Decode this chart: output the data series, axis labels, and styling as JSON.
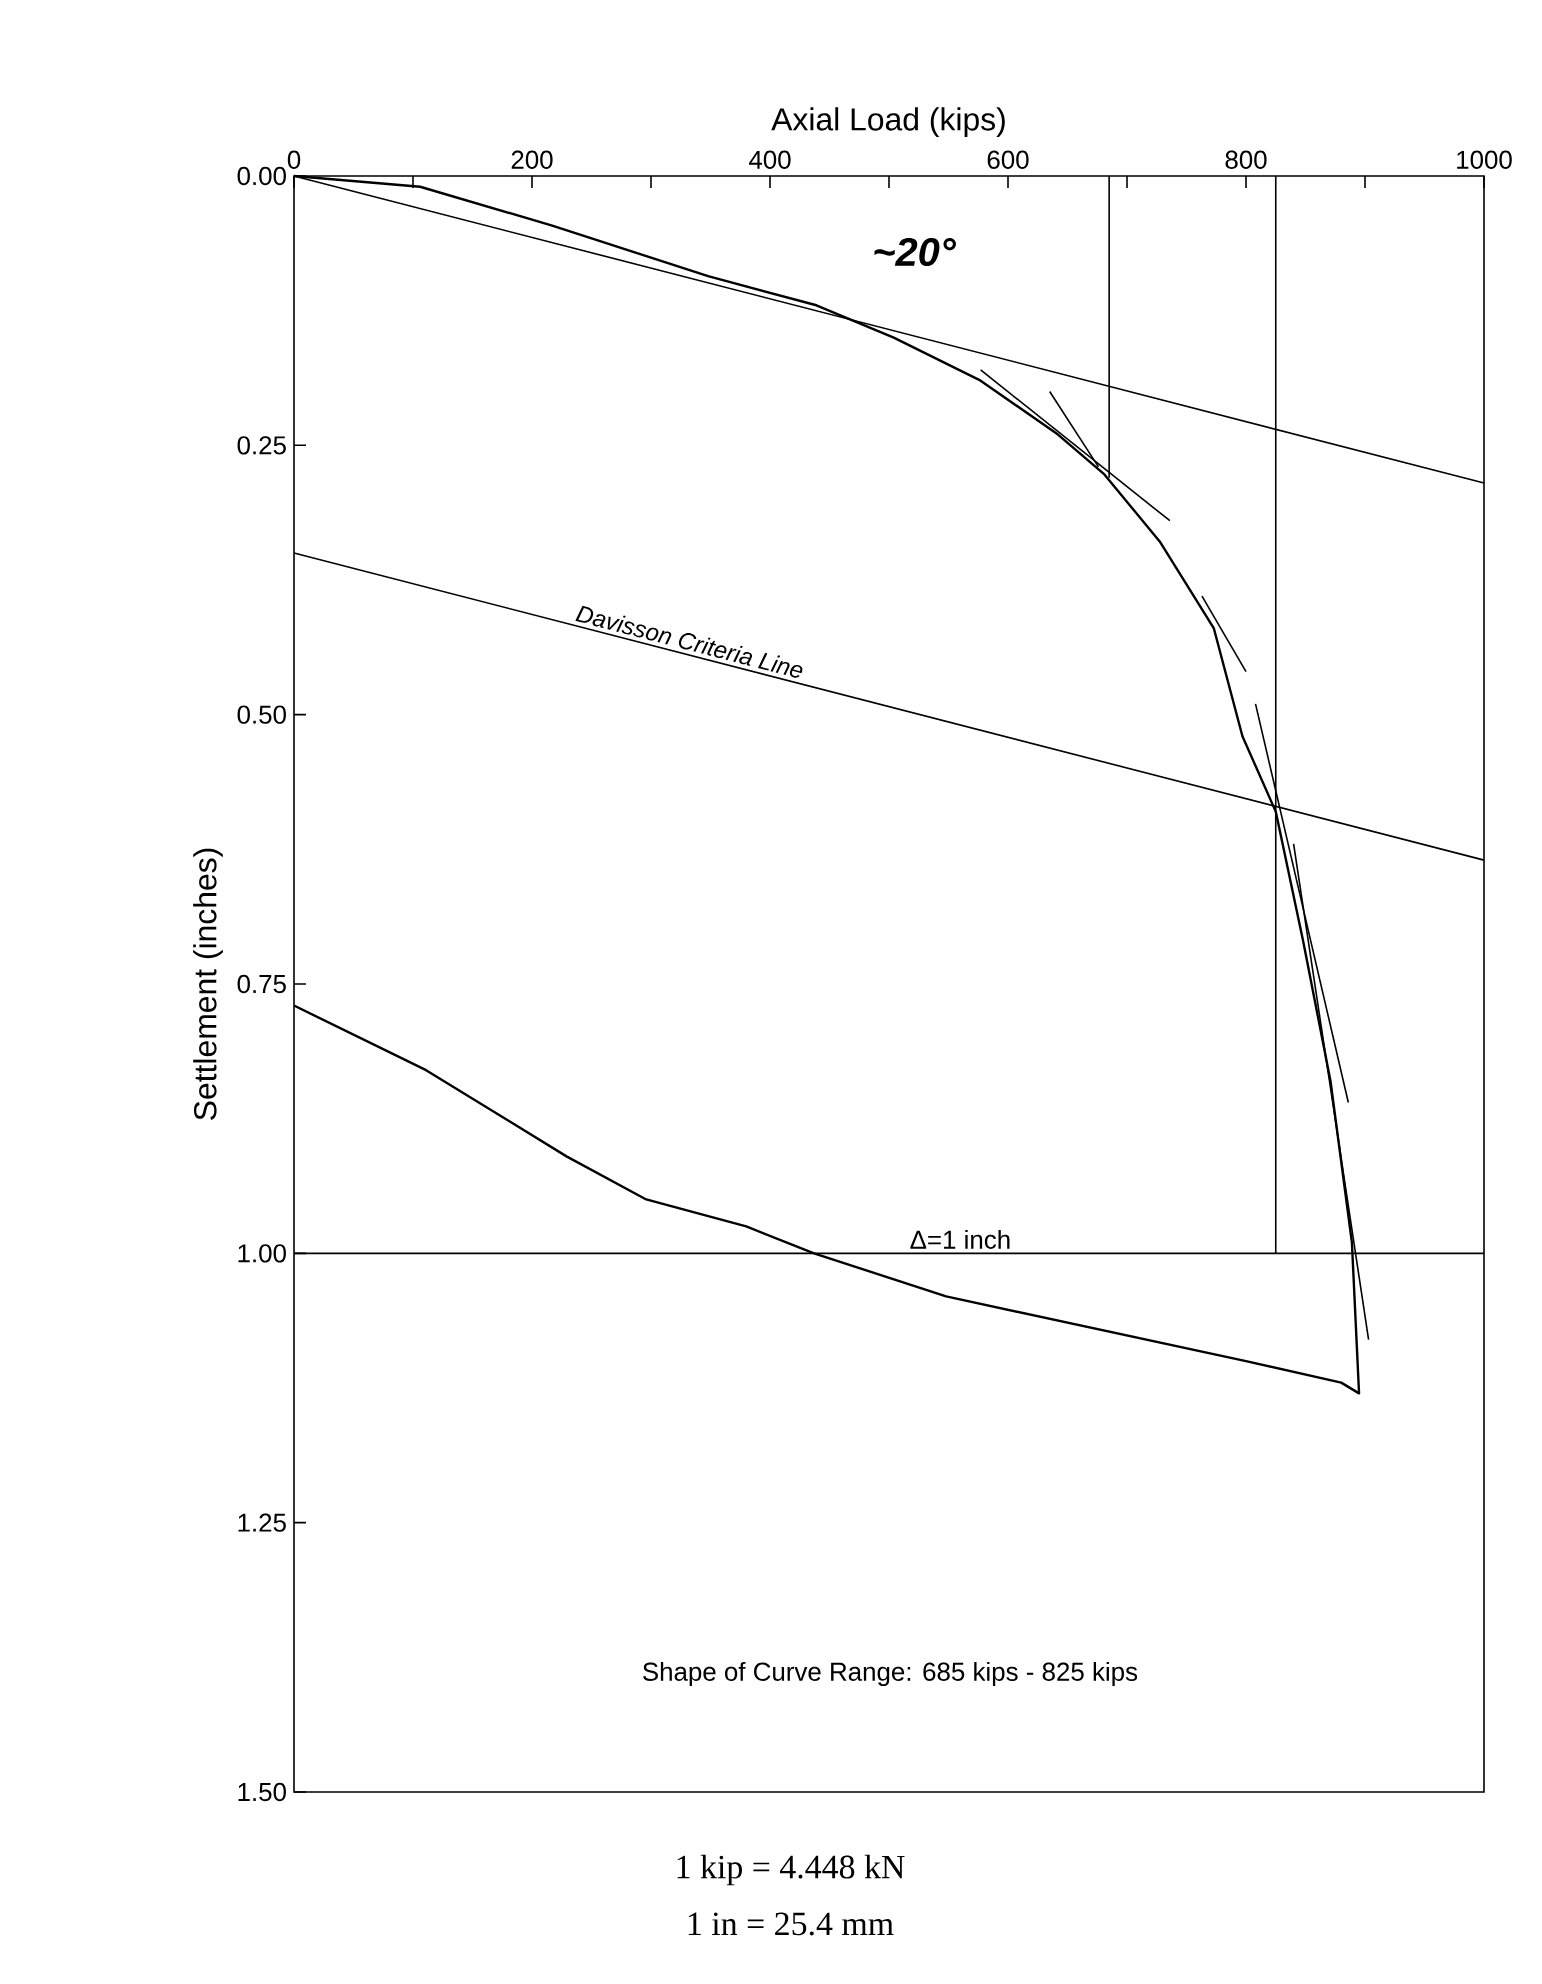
{
  "chart_data": {
    "type": "line",
    "xlabel": "Axial Load (kips)",
    "ylabel": "Settlement (inches)",
    "xlim": [
      0,
      1000
    ],
    "ylim": [
      1.5,
      0
    ],
    "xticks": [
      0,
      {
        "value": 100,
        "label": null
      },
      200,
      {
        "value": 300,
        "label": null
      },
      400,
      {
        "value": 500,
        "label": null
      },
      600,
      {
        "value": 700,
        "label": null
      },
      800,
      {
        "value": 900,
        "label": null
      },
      1000
    ],
    "yticks": [
      {
        "value": 0,
        "label": "0.00"
      },
      {
        "value": 0.25,
        "label": "0.25"
      },
      {
        "value": 0.5,
        "label": "0.50"
      },
      {
        "value": 0.75,
        "label": "0.75"
      },
      {
        "value": 1,
        "label": "1.00"
      },
      {
        "value": 1.25,
        "label": "1.25"
      },
      {
        "value": 1.5,
        "label": "1.50"
      }
    ],
    "grid": false,
    "marker": "none",
    "line_style": "solid",
    "series": [
      {
        "color": "#000000",
        "x": [
          0,
          106,
          217,
          348,
          439,
          504,
          577,
          642,
          681,
          728,
          773,
          797,
          825,
          848,
          871,
          889,
          895,
          880,
          800,
          632,
          548,
          437,
          380,
          296,
          229,
          111,
          0
        ],
        "values": [
          0,
          0.01,
          0.046,
          0.093,
          0.12,
          0.15,
          0.19,
          0.24,
          0.277,
          0.34,
          0.42,
          0.52,
          0.59,
          0.71,
          0.84,
          0.99,
          1.13,
          1.12,
          1.1,
          1.06,
          1.04,
          1.0,
          0.975,
          0.95,
          0.91,
          0.83,
          0.77
        ]
      },
      {
        "color": "#000000",
        "x": [
          0,
          1000
        ],
        "values": [
          0,
          0.285
        ]
      },
      {
        "name": "Davisson Criteria Line",
        "color": "#000000",
        "x": [
          0,
          1000
        ],
        "values": [
          0.35,
          0.635
        ]
      },
      {
        "color": "#000000",
        "x": [
          685,
          685
        ],
        "values": [
          0,
          0.28
        ]
      },
      {
        "color": "#000000",
        "x": [
          825,
          825
        ],
        "values": [
          0,
          1.0
        ]
      },
      {
        "color": "#000000",
        "x": [
          577,
          736
        ],
        "values": [
          0.18,
          0.32
        ]
      },
      {
        "color": "#000000",
        "x": [
          635,
          676
        ],
        "values": [
          0.2,
          0.27
        ]
      },
      {
        "color": "#000000",
        "x": [
          763,
          800
        ],
        "values": [
          0.39,
          0.46
        ]
      },
      {
        "color": "#000000",
        "x": [
          808,
          886
        ],
        "values": [
          0.49,
          0.86
        ]
      },
      {
        "color": "#000000",
        "x": [
          840,
          903
        ],
        "values": [
          0.62,
          1.08
        ]
      }
    ],
    "ref_lines": [
      {
        "axis": "y",
        "value": 1,
        "label": "Δ=1 inch",
        "color": "#000000"
      }
    ],
    "annotations": [
      "~20°",
      "Shape of Curve Range: 685 kips - 825 kips",
      "1 kip = 4.448 kN",
      "1 in = 25.4 mm"
    ]
  }
}
